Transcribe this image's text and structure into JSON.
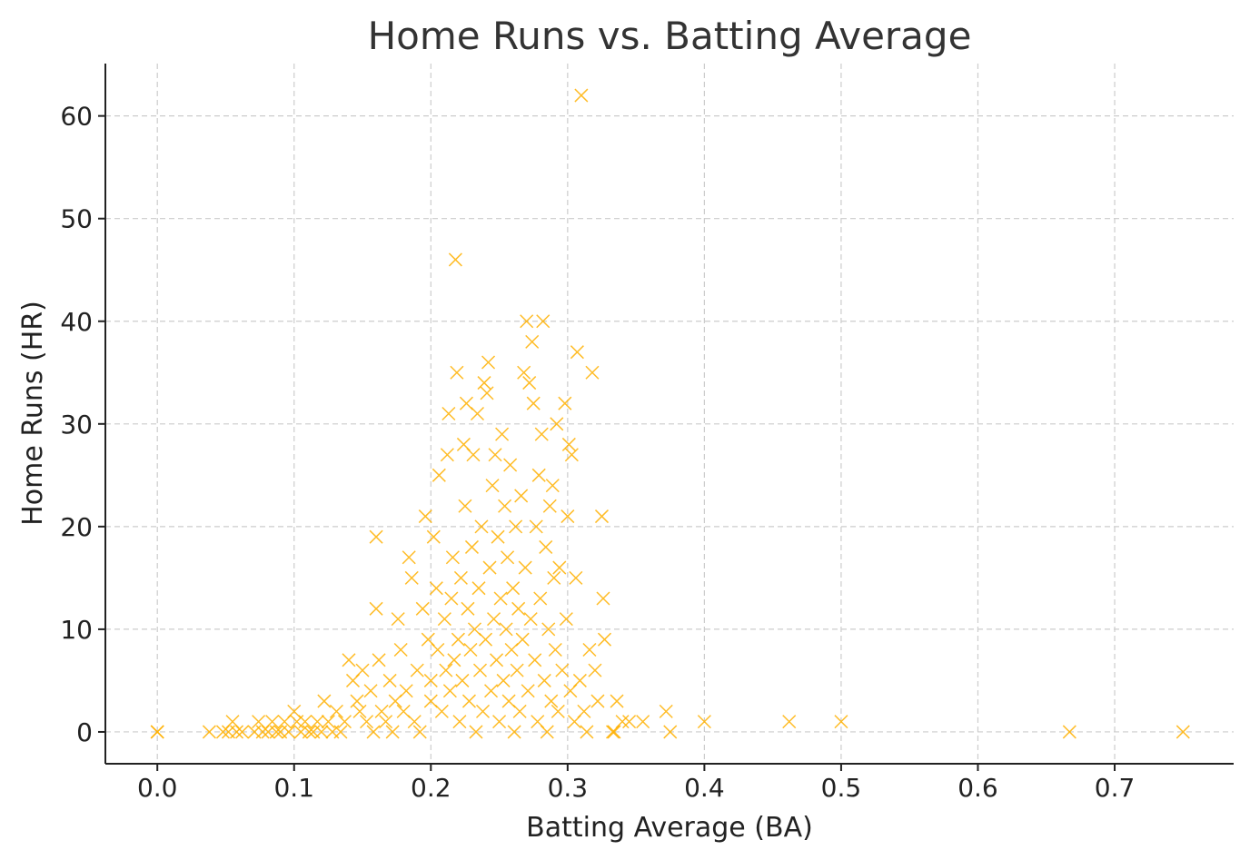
{
  "chart_data": {
    "type": "scatter",
    "title": "Home Runs vs. Batting Average",
    "xlabel": "Batting Average (BA)",
    "ylabel": "Home Runs (HR)",
    "xlim": [
      -0.038,
      0.787
    ],
    "ylim": [
      -3.1,
      65.1
    ],
    "xticks": [
      0.0,
      0.1,
      0.2,
      0.3,
      0.4,
      0.5,
      0.6,
      0.7
    ],
    "xtick_labels": [
      "0.0",
      "0.1",
      "0.2",
      "0.3",
      "0.4",
      "0.5",
      "0.6",
      "0.7"
    ],
    "yticks": [
      0,
      10,
      20,
      30,
      40,
      50,
      60
    ],
    "ytick_labels": [
      "0",
      "10",
      "20",
      "30",
      "40",
      "50",
      "60"
    ],
    "grid": true,
    "marker": "x",
    "color": "#FFB000",
    "points": [
      [
        0.0,
        0
      ],
      [
        0.0,
        0
      ],
      [
        0.038,
        0
      ],
      [
        0.048,
        0
      ],
      [
        0.052,
        0
      ],
      [
        0.055,
        1
      ],
      [
        0.058,
        0
      ],
      [
        0.062,
        0
      ],
      [
        0.071,
        0
      ],
      [
        0.074,
        1
      ],
      [
        0.077,
        0
      ],
      [
        0.081,
        0
      ],
      [
        0.084,
        1
      ],
      [
        0.087,
        0
      ],
      [
        0.09,
        0
      ],
      [
        0.093,
        1
      ],
      [
        0.096,
        0
      ],
      [
        0.1,
        2
      ],
      [
        0.102,
        1
      ],
      [
        0.105,
        0
      ],
      [
        0.108,
        1
      ],
      [
        0.111,
        0
      ],
      [
        0.114,
        0
      ],
      [
        0.117,
        1
      ],
      [
        0.12,
        0
      ],
      [
        0.122,
        3
      ],
      [
        0.125,
        1
      ],
      [
        0.128,
        0
      ],
      [
        0.131,
        2
      ],
      [
        0.134,
        0
      ],
      [
        0.137,
        1
      ],
      [
        0.14,
        7
      ],
      [
        0.143,
        5
      ],
      [
        0.146,
        3
      ],
      [
        0.148,
        2
      ],
      [
        0.15,
        6
      ],
      [
        0.153,
        1
      ],
      [
        0.156,
        4
      ],
      [
        0.158,
        0
      ],
      [
        0.16,
        19
      ],
      [
        0.16,
        12
      ],
      [
        0.162,
        7
      ],
      [
        0.164,
        2
      ],
      [
        0.167,
        1
      ],
      [
        0.17,
        5
      ],
      [
        0.172,
        0
      ],
      [
        0.174,
        3
      ],
      [
        0.176,
        11
      ],
      [
        0.178,
        8
      ],
      [
        0.18,
        2
      ],
      [
        0.182,
        4
      ],
      [
        0.184,
        17
      ],
      [
        0.186,
        15
      ],
      [
        0.188,
        1
      ],
      [
        0.19,
        6
      ],
      [
        0.192,
        0
      ],
      [
        0.194,
        12
      ],
      [
        0.196,
        21
      ],
      [
        0.198,
        9
      ],
      [
        0.2,
        5
      ],
      [
        0.2,
        3
      ],
      [
        0.202,
        19
      ],
      [
        0.204,
        14
      ],
      [
        0.205,
        8
      ],
      [
        0.206,
        25
      ],
      [
        0.208,
        2
      ],
      [
        0.21,
        11
      ],
      [
        0.211,
        6
      ],
      [
        0.212,
        27
      ],
      [
        0.213,
        31
      ],
      [
        0.214,
        4
      ],
      [
        0.215,
        13
      ],
      [
        0.216,
        17
      ],
      [
        0.217,
        7
      ],
      [
        0.218,
        46
      ],
      [
        0.219,
        35
      ],
      [
        0.22,
        9
      ],
      [
        0.221,
        1
      ],
      [
        0.222,
        15
      ],
      [
        0.223,
        5
      ],
      [
        0.224,
        28
      ],
      [
        0.225,
        22
      ],
      [
        0.226,
        32
      ],
      [
        0.227,
        12
      ],
      [
        0.228,
        3
      ],
      [
        0.229,
        8
      ],
      [
        0.23,
        18
      ],
      [
        0.231,
        27
      ],
      [
        0.232,
        10
      ],
      [
        0.233,
        0
      ],
      [
        0.234,
        31
      ],
      [
        0.235,
        14
      ],
      [
        0.236,
        6
      ],
      [
        0.237,
        20
      ],
      [
        0.238,
        2
      ],
      [
        0.239,
        34
      ],
      [
        0.24,
        9
      ],
      [
        0.241,
        33
      ],
      [
        0.242,
        36
      ],
      [
        0.243,
        16
      ],
      [
        0.244,
        4
      ],
      [
        0.245,
        24
      ],
      [
        0.246,
        11
      ],
      [
        0.247,
        27
      ],
      [
        0.248,
        7
      ],
      [
        0.249,
        19
      ],
      [
        0.25,
        1
      ],
      [
        0.251,
        13
      ],
      [
        0.252,
        29
      ],
      [
        0.253,
        5
      ],
      [
        0.254,
        22
      ],
      [
        0.255,
        10
      ],
      [
        0.256,
        17
      ],
      [
        0.257,
        3
      ],
      [
        0.258,
        26
      ],
      [
        0.259,
        8
      ],
      [
        0.26,
        14
      ],
      [
        0.261,
        0
      ],
      [
        0.262,
        20
      ],
      [
        0.263,
        6
      ],
      [
        0.264,
        12
      ],
      [
        0.265,
        2
      ],
      [
        0.266,
        23
      ],
      [
        0.267,
        9
      ],
      [
        0.268,
        35
      ],
      [
        0.269,
        16
      ],
      [
        0.27,
        40
      ],
      [
        0.271,
        4
      ],
      [
        0.272,
        34
      ],
      [
        0.273,
        11
      ],
      [
        0.274,
        38
      ],
      [
        0.275,
        32
      ],
      [
        0.276,
        7
      ],
      [
        0.277,
        20
      ],
      [
        0.278,
        1
      ],
      [
        0.279,
        25
      ],
      [
        0.28,
        13
      ],
      [
        0.281,
        29
      ],
      [
        0.282,
        40
      ],
      [
        0.283,
        5
      ],
      [
        0.284,
        18
      ],
      [
        0.285,
        0
      ],
      [
        0.286,
        10
      ],
      [
        0.287,
        22
      ],
      [
        0.288,
        3
      ],
      [
        0.289,
        24
      ],
      [
        0.29,
        15
      ],
      [
        0.291,
        8
      ],
      [
        0.292,
        30
      ],
      [
        0.293,
        2
      ],
      [
        0.294,
        16
      ],
      [
        0.296,
        6
      ],
      [
        0.298,
        32
      ],
      [
        0.299,
        11
      ],
      [
        0.3,
        21
      ],
      [
        0.301,
        28
      ],
      [
        0.302,
        4
      ],
      [
        0.303,
        27
      ],
      [
        0.305,
        1
      ],
      [
        0.306,
        15
      ],
      [
        0.307,
        37
      ],
      [
        0.309,
        5
      ],
      [
        0.31,
        62
      ],
      [
        0.312,
        2
      ],
      [
        0.314,
        0
      ],
      [
        0.316,
        8
      ],
      [
        0.318,
        35
      ],
      [
        0.32,
        6
      ],
      [
        0.322,
        3
      ],
      [
        0.325,
        21
      ],
      [
        0.326,
        13
      ],
      [
        0.327,
        9
      ],
      [
        0.333,
        0
      ],
      [
        0.334,
        0
      ],
      [
        0.336,
        3
      ],
      [
        0.34,
        1
      ],
      [
        0.345,
        1
      ],
      [
        0.355,
        1
      ],
      [
        0.372,
        2
      ],
      [
        0.375,
        0
      ],
      [
        0.4,
        1
      ],
      [
        0.462,
        1
      ],
      [
        0.5,
        1
      ],
      [
        0.667,
        0
      ],
      [
        0.75,
        0
      ]
    ]
  }
}
